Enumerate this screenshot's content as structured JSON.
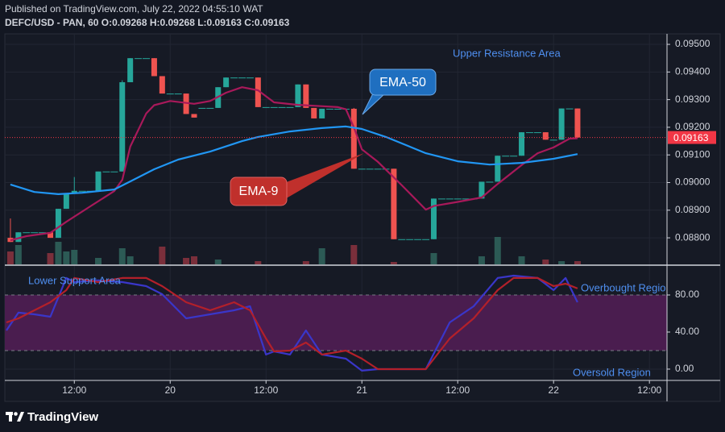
{
  "header": {
    "published": "Published on TradingView.com, July 22, 2022 04:55:10 WAT",
    "symbol": "DEFC/USD - PAN, 60  O:0.09268 H:0.09268 L:0.09163 C:0.09163"
  },
  "footer": {
    "brand": "TradingView"
  },
  "chart_data": [
    {
      "type": "candlestick",
      "x": [
        -20,
        -19,
        -18,
        -17,
        -16,
        -15,
        -14,
        -13,
        -12,
        -11,
        -10,
        -9,
        -8,
        -7,
        -6,
        -5,
        -4,
        -3,
        -2,
        -1,
        0,
        1,
        2,
        3,
        4,
        5,
        6,
        7,
        8,
        9,
        10,
        11,
        12,
        13,
        14,
        15,
        16,
        17,
        18,
        19,
        20,
        21,
        22,
        23,
        24,
        25,
        26,
        27,
        28,
        29,
        30,
        31,
        32,
        33,
        34,
        35,
        36,
        37,
        38,
        39,
        40,
        41,
        42,
        43,
        44,
        45,
        46,
        47,
        48,
        49,
        50,
        51
      ],
      "open": [
        0.088,
        0.08785,
        0.0882,
        0.0882,
        0.0882,
        0.0882,
        0.088,
        0.08905,
        0.0896,
        0.0897,
        0.0897,
        0.0897,
        0.0904,
        0.0904,
        0.0904,
        0.09363,
        0.0945,
        0.0945,
        0.0945,
        0.09385,
        0.09322,
        0.09322,
        0.09322,
        0.09248,
        0.0927,
        0.0927,
        0.0927,
        0.09345,
        0.0938,
        0.0938,
        0.0938,
        0.0938,
        0.09273,
        0.09273,
        0.09273,
        0.09273,
        0.09273,
        0.09355,
        0.0927,
        0.09232,
        0.09267,
        0.09267,
        0.09267,
        0.09267,
        0.0905,
        0.0905,
        0.0905,
        0.0905,
        0.0905,
        0.08795,
        0.08795,
        0.08795,
        0.08795,
        0.08795,
        0.08942,
        0.08942,
        0.08942,
        0.08942,
        0.08942,
        0.08942,
        0.09003,
        0.09003,
        0.09097,
        0.09097,
        0.09097,
        0.09182,
        0.09182,
        0.09182,
        0.09155,
        0.09155,
        0.09268,
        0.09268
      ],
      "high": [
        0.0887,
        0.0882,
        0.0882,
        0.0882,
        0.0882,
        0.0882,
        0.08905,
        0.0896,
        0.0902,
        0.0897,
        0.0897,
        0.0904,
        0.0904,
        0.0904,
        0.0937,
        0.0945,
        0.0945,
        0.0945,
        0.0945,
        0.09385,
        0.09322,
        0.09322,
        0.09322,
        0.09248,
        0.0927,
        0.0927,
        0.09345,
        0.0938,
        0.0938,
        0.0938,
        0.0938,
        0.0938,
        0.09273,
        0.09273,
        0.09273,
        0.09273,
        0.09355,
        0.09355,
        0.0927,
        0.09267,
        0.09267,
        0.09267,
        0.09267,
        0.0927,
        0.0905,
        0.0905,
        0.0905,
        0.0905,
        0.0905,
        0.08795,
        0.08795,
        0.08795,
        0.08795,
        0.08942,
        0.08942,
        0.08942,
        0.08942,
        0.08942,
        0.08942,
        0.09003,
        0.09003,
        0.09097,
        0.09097,
        0.09097,
        0.09182,
        0.09182,
        0.09182,
        0.09182,
        0.09155,
        0.09268,
        0.09268,
        0.09268
      ],
      "low": [
        0.08785,
        0.08785,
        0.0882,
        0.0882,
        0.0882,
        0.088,
        0.088,
        0.08905,
        0.0896,
        0.0897,
        0.0897,
        0.0897,
        0.0904,
        0.0904,
        0.0904,
        0.09363,
        0.0945,
        0.0945,
        0.09385,
        0.09322,
        0.09322,
        0.09322,
        0.09248,
        0.09235,
        0.0927,
        0.0927,
        0.0927,
        0.09345,
        0.0938,
        0.0938,
        0.0938,
        0.09273,
        0.09273,
        0.09273,
        0.09273,
        0.09273,
        0.09273,
        0.0927,
        0.09232,
        0.09232,
        0.09267,
        0.09267,
        0.09267,
        0.0905,
        0.0905,
        0.0905,
        0.0905,
        0.0905,
        0.08795,
        0.08795,
        0.08795,
        0.08795,
        0.08795,
        0.08795,
        0.08942,
        0.08942,
        0.08942,
        0.08942,
        0.08942,
        0.08942,
        0.09003,
        0.09003,
        0.09097,
        0.09097,
        0.09097,
        0.09182,
        0.09182,
        0.09155,
        0.09155,
        0.09155,
        0.09268,
        0.09163
      ],
      "close": [
        0.08785,
        0.0882,
        0.0882,
        0.0882,
        0.0882,
        0.088,
        0.08905,
        0.0896,
        0.0897,
        0.0897,
        0.0897,
        0.0904,
        0.0904,
        0.0904,
        0.09363,
        0.0945,
        0.0945,
        0.0945,
        0.09385,
        0.09322,
        0.09322,
        0.09322,
        0.09248,
        0.09235,
        0.0927,
        0.0927,
        0.09345,
        0.0938,
        0.0938,
        0.0938,
        0.0938,
        0.09273,
        0.09273,
        0.09273,
        0.09273,
        0.09273,
        0.09355,
        0.0927,
        0.09232,
        0.09267,
        0.09267,
        0.09267,
        0.09267,
        0.0905,
        0.0905,
        0.0905,
        0.0905,
        0.0905,
        0.08795,
        0.08795,
        0.08795,
        0.08795,
        0.08795,
        0.08942,
        0.08942,
        0.08942,
        0.08942,
        0.08942,
        0.08942,
        0.09003,
        0.09003,
        0.09097,
        0.09097,
        0.09097,
        0.09182,
        0.09182,
        0.09182,
        0.09155,
        0.09155,
        0.09268,
        0.09268,
        0.09163
      ],
      "up_color": "#26a69a",
      "down_color": "#ef5350",
      "volume": {
        "x": [
          -20,
          -19,
          -15,
          -14,
          -13,
          -12,
          -9,
          -6,
          -5,
          -1,
          2,
          3,
          6,
          11,
          17,
          19,
          23,
          28,
          33,
          39,
          41,
          44,
          47,
          49,
          51
        ],
        "values": [
          16,
          24,
          14,
          28,
          16,
          18,
          8,
          20,
          10,
          22,
          8,
          10,
          6,
          4,
          4,
          20,
          24,
          3,
          14,
          10,
          34,
          10,
          6,
          4,
          4
        ],
        "ylim": [
          0,
          100
        ],
        "up_color": "#2c5a55",
        "down_color": "#7a2f3b"
      },
      "series": [
        {
          "name": "EMA-9",
          "color": "#a8195a",
          "x": [
            -20,
            -18,
            -15,
            -13,
            -10,
            -7,
            -6,
            -5,
            -3,
            -2,
            0,
            3,
            5,
            7,
            9,
            11,
            13,
            16,
            18,
            21,
            22,
            23,
            24,
            26,
            29,
            32,
            33,
            36,
            39,
            41,
            44,
            46,
            48,
            50,
            51
          ],
          "values": [
            0.08791,
            0.08806,
            0.08818,
            0.08858,
            0.08914,
            0.08969,
            0.0901,
            0.0913,
            0.0925,
            0.0928,
            0.09295,
            0.09285,
            0.09295,
            0.09325,
            0.09345,
            0.09334,
            0.0929,
            0.09281,
            0.09278,
            0.09273,
            0.09265,
            0.092,
            0.0912,
            0.09075,
            0.0899,
            0.08902,
            0.08915,
            0.0893,
            0.08946,
            0.08995,
            0.09063,
            0.09106,
            0.09127,
            0.09159,
            0.0916
          ]
        },
        {
          "name": "EMA-50",
          "color": "#2196f3",
          "x": [
            -20,
            -17,
            -14,
            -11,
            -7,
            -5,
            -2,
            1,
            5,
            9,
            11,
            15,
            19,
            22,
            24,
            27,
            32,
            36,
            40,
            44,
            48,
            51
          ],
          "values": [
            0.08993,
            0.08966,
            0.08958,
            0.08963,
            0.08975,
            0.09004,
            0.09048,
            0.09083,
            0.09112,
            0.0915,
            0.09165,
            0.09185,
            0.09197,
            0.09203,
            0.09194,
            0.09165,
            0.09106,
            0.09077,
            0.09065,
            0.09071,
            0.09086,
            0.09103
          ]
        }
      ],
      "last_price": {
        "value": 0.09163,
        "label": "0.09163",
        "color": "#f23645"
      },
      "annotations": [
        "Upper Resistance Area"
      ],
      "xlim": [
        -20.7,
        62.2
      ],
      "ylim": [
        0.08704,
        0.09538
      ],
      "yticks": [
        {
          "value": 0.088,
          "label": "0.08800"
        },
        {
          "value": 0.089,
          "label": "0.08900"
        },
        {
          "value": 0.09,
          "label": "0.09000"
        },
        {
          "value": 0.091,
          "label": "0.09100"
        },
        {
          "value": 0.092,
          "label": "0.09200"
        },
        {
          "value": 0.093,
          "label": "0.09300"
        },
        {
          "value": 0.094,
          "label": "0.09400"
        },
        {
          "value": 0.095,
          "label": "0.09500"
        }
      ],
      "grid": true
    },
    {
      "type": "line",
      "series": [
        {
          "color": "#3a36c9",
          "x": [
            -20.5,
            -19,
            -17,
            -15,
            -13,
            -12,
            -9,
            -6,
            -3,
            -1,
            2,
            5,
            8,
            10,
            12,
            13,
            15,
            17,
            19,
            22,
            24,
            26,
            32,
            35,
            38,
            41,
            43,
            46,
            48,
            49.5,
            51
          ],
          "values": [
            41.7,
            60.9,
            59.1,
            56.5,
            98.3,
            93.9,
            95.7,
            93.9,
            89.6,
            80.9,
            54.8,
            59.1,
            63.5,
            67.8,
            15.7,
            19.1,
            15.7,
            41.7,
            15.7,
            11.3,
            -1.7,
            0,
            0,
            50.4,
            67.8,
            98.3,
            100.9,
            98.3,
            85.2,
            98.3,
            72.2
          ]
        },
        {
          "color": "#b3202a",
          "x": [
            -20.5,
            -19,
            -17,
            -15,
            -13,
            -12,
            -9,
            -6,
            -3,
            -1,
            2,
            5,
            8,
            10,
            12,
            13,
            15,
            17,
            19,
            22,
            24,
            26,
            32,
            35,
            38,
            41,
            43,
            46,
            48,
            49.5,
            51
          ],
          "values": [
            50.4,
            54.8,
            63.5,
            72.2,
            85.2,
            98.3,
            93.9,
            98.3,
            98.3,
            89.6,
            72.2,
            63.5,
            72.2,
            63.5,
            33.0,
            19.1,
            20,
            28.7,
            15.7,
            20,
            11.3,
            0,
            0,
            33,
            54.8,
            85.2,
            98.3,
            98.3,
            89.6,
            92.2,
            87
          ]
        }
      ],
      "band": [
        20,
        80
      ],
      "band_color": "#4a1d4f",
      "annotations": [
        "Lower Support Area",
        "Overbought Regio",
        "Oversold Region"
      ],
      "xlim": [
        -20.7,
        62.2
      ],
      "ylim": [
        -12.2,
        111.3
      ],
      "yticks": [
        {
          "value": 0,
          "label": "0.00"
        },
        {
          "value": 40,
          "label": "40.00"
        },
        {
          "value": 80,
          "label": "80.00"
        }
      ],
      "xticks": [
        {
          "value": -12,
          "label": "12:00"
        },
        {
          "value": 0,
          "label": "20"
        },
        {
          "value": 12,
          "label": "12:00"
        },
        {
          "value": 24,
          "label": "21"
        },
        {
          "value": 36,
          "label": "12:00"
        },
        {
          "value": 48,
          "label": "22"
        },
        {
          "value": 60,
          "label": "12:00"
        }
      ],
      "grid": true
    }
  ]
}
